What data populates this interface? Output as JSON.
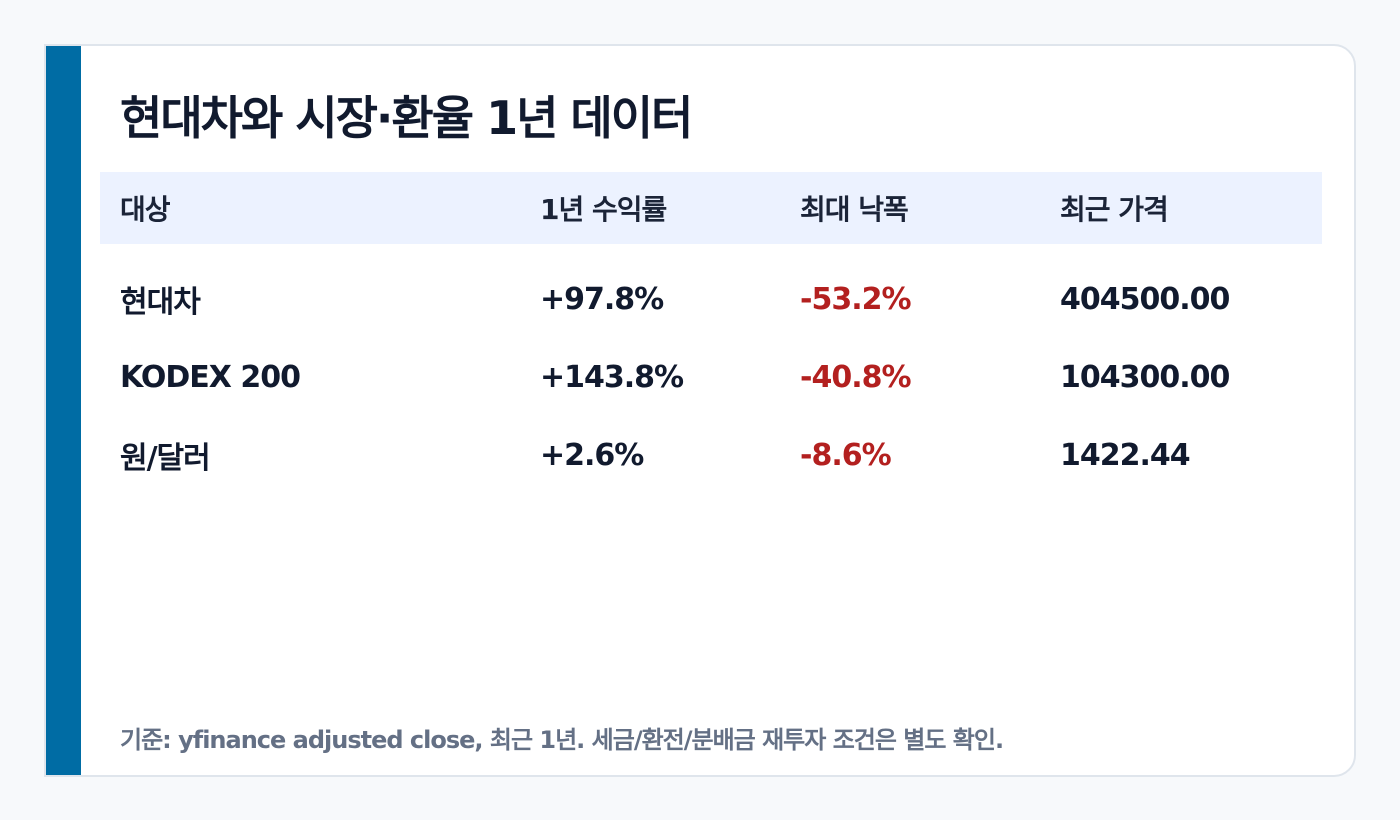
{
  "title": "현대차와 시장·환율 1년 데이터",
  "table": {
    "headers": [
      "대상",
      "1년 수익률",
      "최대 낙폭",
      "최근 가격"
    ],
    "rows": [
      [
        "현대차",
        "+97.8%",
        "-53.2%",
        "404500.00"
      ],
      [
        "KODEX 200",
        "+143.8%",
        "-40.8%",
        "104300.00"
      ],
      [
        "원/달러",
        "+2.6%",
        "-8.6%",
        "1422.44"
      ]
    ]
  },
  "footnote": "기준: yfinance adjusted close, 최근 1년. 세금/환전/분배금 재투자 조건은 별도 확인.",
  "colors": {
    "accent": "#006ca4",
    "header_bg": "#ecf2ff",
    "negative": "#b3201f",
    "text": "#111a2e",
    "muted": "#647085"
  }
}
